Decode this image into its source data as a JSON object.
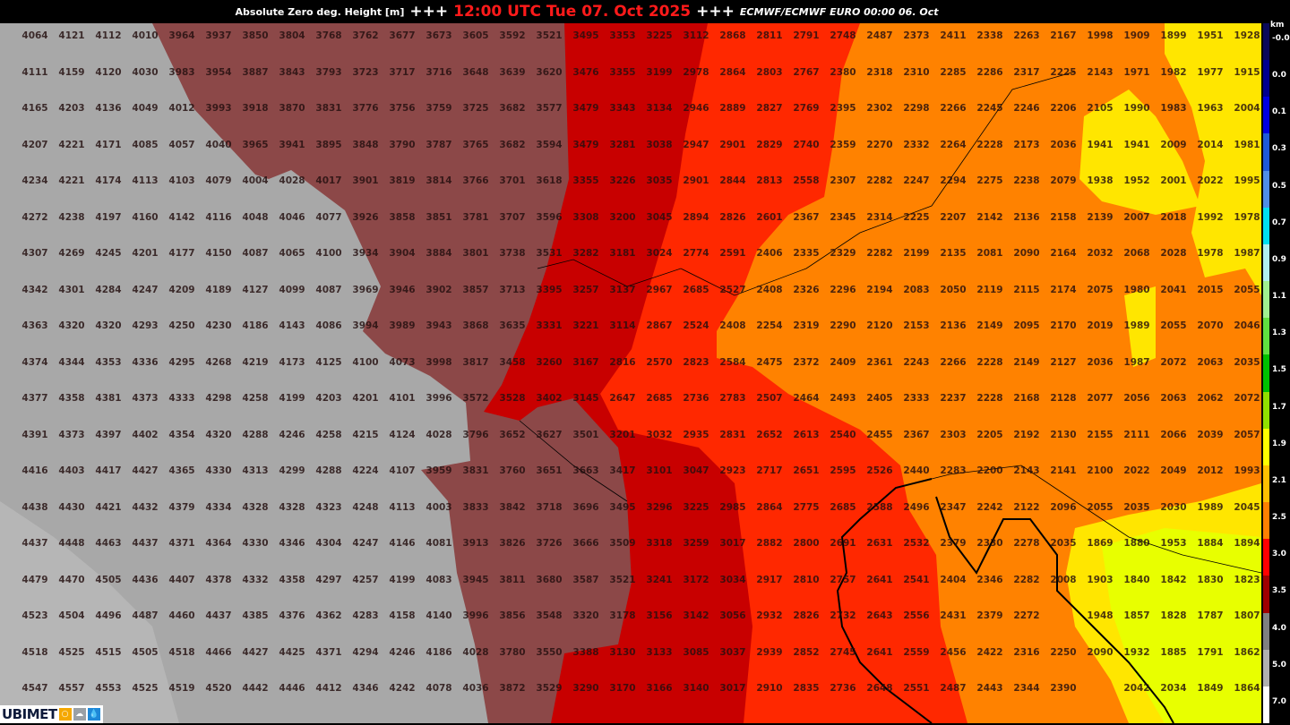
{
  "header": {
    "parameter": "Absolute Zero deg. Height [m]",
    "separator": "+++",
    "valid_time": "12:00 UTC Tue 07. Oct 2025",
    "model_run": "ECMWF/ECMWF EURO 00:00 06. Oct"
  },
  "colors": {
    "valid_time": "#ff1a1a",
    "gray_high": "#a8a8a8",
    "gray_light": "#b6b6b6",
    "brown": "#8c4848",
    "dark_red": "#c80000",
    "red": "#ff2800",
    "orange": "#ff8200",
    "yellow": "#ffe600",
    "yellow_green": "#e8ff00"
  },
  "colorbar": {
    "unit": "km",
    "labels": [
      "-0.0",
      "0.0",
      "0.1",
      "0.3",
      "0.5",
      "0.7",
      "0.9",
      "1.1",
      "1.3",
      "1.5",
      "1.7",
      "1.9",
      "2.1",
      "2.5",
      "3.0",
      "3.5",
      "4.0",
      "5.0",
      "7.0"
    ],
    "colors": [
      "#0a0a5a",
      "#000090",
      "#0000e0",
      "#1e5ad8",
      "#4f8ee8",
      "#00e0f0",
      "#b0f0f0",
      "#a0f090",
      "#60e040",
      "#00c000",
      "#90e000",
      "#ffff00",
      "#ffc000",
      "#ff8000",
      "#ff0000",
      "#a00000",
      "#808080",
      "#b0b0b0",
      "#ffffff"
    ]
  },
  "logo": {
    "text": "UBIMET",
    "icons": [
      "sun-icon",
      "cloud-icon",
      "drop-icon"
    ]
  },
  "map": {
    "rows": [
      [
        "4064",
        "4121",
        "4112",
        "4010",
        "3964",
        "3937",
        "3850",
        "3804",
        "3768",
        "3762",
        "3677",
        "3673",
        "3605",
        "3592",
        "3521",
        "3495",
        "3353",
        "3225",
        "3112",
        "2868",
        "2811",
        "2791",
        "2748",
        "2487",
        "2373",
        "2411",
        "2338",
        "2263",
        "2167",
        "1998",
        "1909",
        "1899",
        "1951",
        "1928"
      ],
      [
        "4111",
        "4159",
        "4120",
        "4030",
        "3983",
        "3954",
        "3887",
        "3843",
        "3793",
        "3723",
        "3717",
        "3716",
        "3648",
        "3639",
        "3620",
        "3476",
        "3355",
        "3199",
        "2978",
        "2864",
        "2803",
        "2767",
        "2380",
        "2318",
        "2310",
        "2285",
        "2286",
        "2317",
        "2225",
        "2143",
        "1971",
        "1982",
        "1977",
        "1915"
      ],
      [
        "4165",
        "4203",
        "4136",
        "4049",
        "4012",
        "3993",
        "3918",
        "3870",
        "3831",
        "3776",
        "3756",
        "3759",
        "3725",
        "3682",
        "3577",
        "3479",
        "3343",
        "3134",
        "2946",
        "2889",
        "2827",
        "2769",
        "2395",
        "2302",
        "2298",
        "2266",
        "2245",
        "2246",
        "2206",
        "2105",
        "1990",
        "1983",
        "1963",
        "2004"
      ],
      [
        "4207",
        "4221",
        "4171",
        "4085",
        "4057",
        "4040",
        "3965",
        "3941",
        "3895",
        "3848",
        "3790",
        "3787",
        "3765",
        "3682",
        "3594",
        "3479",
        "3281",
        "3038",
        "2947",
        "2901",
        "2829",
        "2740",
        "2359",
        "2270",
        "2332",
        "2264",
        "2228",
        "2173",
        "2036",
        "1941",
        "1941",
        "2009",
        "2014",
        "1981"
      ],
      [
        "4234",
        "4221",
        "4174",
        "4113",
        "4103",
        "4079",
        "4004",
        "4028",
        "4017",
        "3901",
        "3819",
        "3814",
        "3766",
        "3701",
        "3618",
        "3355",
        "3226",
        "3035",
        "2901",
        "2844",
        "2813",
        "2558",
        "2307",
        "2282",
        "2247",
        "2294",
        "2275",
        "2238",
        "2079",
        "1938",
        "1952",
        "2001",
        "2022",
        "1995"
      ],
      [
        "4272",
        "4238",
        "4197",
        "4160",
        "4142",
        "4116",
        "4048",
        "4046",
        "4077",
        "3926",
        "3858",
        "3851",
        "3781",
        "3707",
        "3596",
        "3308",
        "3200",
        "3045",
        "2894",
        "2826",
        "2601",
        "2367",
        "2345",
        "2314",
        "2225",
        "2207",
        "2142",
        "2136",
        "2158",
        "2139",
        "2007",
        "2018",
        "1992",
        "1978"
      ],
      [
        "4307",
        "4269",
        "4245",
        "4201",
        "4177",
        "4150",
        "4087",
        "4065",
        "4100",
        "3934",
        "3904",
        "3884",
        "3801",
        "3738",
        "3531",
        "3282",
        "3181",
        "3024",
        "2774",
        "2591",
        "2406",
        "2335",
        "2329",
        "2282",
        "2199",
        "2135",
        "2081",
        "2090",
        "2164",
        "2032",
        "2068",
        "2028",
        "1978",
        "1987"
      ],
      [
        "4342",
        "4301",
        "4284",
        "4247",
        "4209",
        "4189",
        "4127",
        "4099",
        "4087",
        "3969",
        "3946",
        "3902",
        "3857",
        "3713",
        "3395",
        "3257",
        "3137",
        "2967",
        "2685",
        "2527",
        "2408",
        "2326",
        "2296",
        "2194",
        "2083",
        "2050",
        "2119",
        "2115",
        "2174",
        "2075",
        "1980",
        "2041",
        "2015",
        "2055"
      ],
      [
        "4363",
        "4320",
        "4320",
        "4293",
        "4250",
        "4230",
        "4186",
        "4143",
        "4086",
        "3994",
        "3989",
        "3943",
        "3868",
        "3635",
        "3331",
        "3221",
        "3114",
        "2867",
        "2524",
        "2408",
        "2254",
        "2319",
        "2290",
        "2120",
        "2153",
        "2136",
        "2149",
        "2095",
        "2170",
        "2019",
        "1989",
        "2055",
        "2070",
        "2046"
      ],
      [
        "4374",
        "4344",
        "4353",
        "4336",
        "4295",
        "4268",
        "4219",
        "4173",
        "4125",
        "4100",
        "4073",
        "3998",
        "3817",
        "3458",
        "3260",
        "3167",
        "2816",
        "2570",
        "2823",
        "2584",
        "2475",
        "2372",
        "2409",
        "2361",
        "2243",
        "2266",
        "2228",
        "2149",
        "2127",
        "2036",
        "1987",
        "2072",
        "2063",
        "2035"
      ],
      [
        "4377",
        "4358",
        "4381",
        "4373",
        "4333",
        "4298",
        "4258",
        "4199",
        "4203",
        "4201",
        "4101",
        "3996",
        "3572",
        "3528",
        "3402",
        "3145",
        "2647",
        "2685",
        "2736",
        "2783",
        "2507",
        "2464",
        "2493",
        "2405",
        "2333",
        "2237",
        "2228",
        "2168",
        "2128",
        "2077",
        "2056",
        "2063",
        "2062",
        "2072"
      ],
      [
        "4391",
        "4373",
        "4397",
        "4402",
        "4354",
        "4320",
        "4288",
        "4246",
        "4258",
        "4215",
        "4124",
        "4028",
        "3796",
        "3652",
        "3627",
        "3501",
        "3201",
        "3032",
        "2935",
        "2831",
        "2652",
        "2613",
        "2540",
        "2455",
        "2367",
        "2303",
        "2205",
        "2192",
        "2130",
        "2155",
        "2111",
        "2066",
        "2039",
        "2057"
      ],
      [
        "4416",
        "4403",
        "4417",
        "4427",
        "4365",
        "4330",
        "4313",
        "4299",
        "4288",
        "4224",
        "4107",
        "3959",
        "3831",
        "3760",
        "3651",
        "3663",
        "3417",
        "3101",
        "3047",
        "2923",
        "2717",
        "2651",
        "2595",
        "2526",
        "2440",
        "2283",
        "2200",
        "2143",
        "2141",
        "2100",
        "2022",
        "2049",
        "2012",
        "1993"
      ],
      [
        "4438",
        "4430",
        "4421",
        "4432",
        "4379",
        "4334",
        "4328",
        "4328",
        "4323",
        "4248",
        "4113",
        "4003",
        "3833",
        "3842",
        "3718",
        "3696",
        "3495",
        "3296",
        "3225",
        "2985",
        "2864",
        "2775",
        "2685",
        "2588",
        "2496",
        "2347",
        "2242",
        "2122",
        "2096",
        "2055",
        "2035",
        "2030",
        "1989",
        "2045"
      ],
      [
        "4437",
        "4448",
        "4463",
        "4437",
        "4371",
        "4364",
        "4330",
        "4346",
        "4304",
        "4247",
        "4146",
        "4081",
        "3913",
        "3826",
        "3726",
        "3666",
        "3509",
        "3318",
        "3259",
        "3017",
        "2882",
        "2800",
        "2691",
        "2631",
        "2532",
        "2379",
        "2330",
        "2278",
        "2035",
        "1869",
        "1880",
        "1953",
        "1884",
        "1894"
      ],
      [
        "4479",
        "4470",
        "4505",
        "4436",
        "4407",
        "4378",
        "4332",
        "4358",
        "4297",
        "4257",
        "4199",
        "4083",
        "3945",
        "3811",
        "3680",
        "3587",
        "3521",
        "3241",
        "3172",
        "3034",
        "2917",
        "2810",
        "2757",
        "2641",
        "2541",
        "2404",
        "2346",
        "2282",
        "2008",
        "1903",
        "1840",
        "1842",
        "1830",
        "1823"
      ],
      [
        "4523",
        "4504",
        "4496",
        "4487",
        "4460",
        "4437",
        "4385",
        "4376",
        "4362",
        "4283",
        "4158",
        "4140",
        "3996",
        "3856",
        "3548",
        "3320",
        "3178",
        "3156",
        "3142",
        "3056",
        "2932",
        "2826",
        "2732",
        "2643",
        "2556",
        "2431",
        "2379",
        "2272",
        "",
        "1948",
        "1857",
        "1828",
        "1787",
        "1807"
      ],
      [
        "4518",
        "4525",
        "4515",
        "4505",
        "4518",
        "4466",
        "4427",
        "4425",
        "4371",
        "4294",
        "4246",
        "4186",
        "4028",
        "3780",
        "3550",
        "3388",
        "3130",
        "3133",
        "3085",
        "3037",
        "2939",
        "2852",
        "2745",
        "2641",
        "2559",
        "2456",
        "2422",
        "2316",
        "2250",
        "2090",
        "1932",
        "1885",
        "1791",
        "1862"
      ],
      [
        "4547",
        "4557",
        "4553",
        "4525",
        "4519",
        "4520",
        "4442",
        "4446",
        "4412",
        "4346",
        "4242",
        "4078",
        "4036",
        "3872",
        "3529",
        "3290",
        "3170",
        "3166",
        "3140",
        "3017",
        "2910",
        "2835",
        "2736",
        "2648",
        "2551",
        "2487",
        "2443",
        "2344",
        "2390",
        "",
        "2042",
        "2034",
        "1849",
        "1864"
      ]
    ]
  }
}
